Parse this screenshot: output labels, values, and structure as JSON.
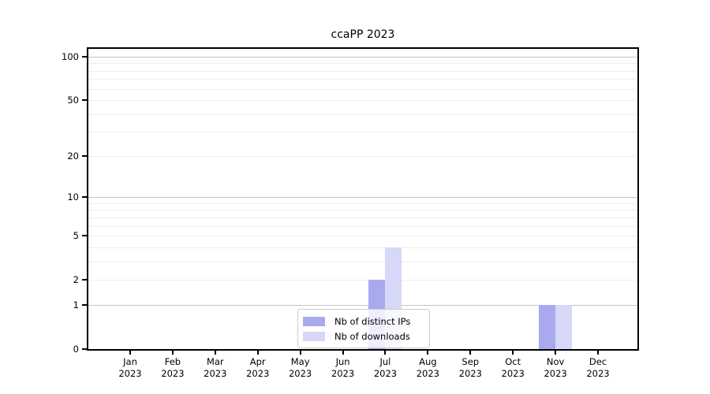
{
  "chart_data": {
    "type": "bar",
    "title": "ccaPP 2023",
    "categories": [
      "Jan",
      "Feb",
      "Mar",
      "Apr",
      "May",
      "Jun",
      "Jul",
      "Aug",
      "Sep",
      "Oct",
      "Nov",
      "Dec"
    ],
    "year": "2023",
    "series": [
      {
        "name": "Nb of distinct IPs",
        "color": "#a9a9f0",
        "values": [
          0,
          0,
          0,
          0,
          0,
          0,
          2,
          0,
          0,
          0,
          1,
          0
        ]
      },
      {
        "name": "Nb of downloads",
        "color": "#d7d7f7",
        "values": [
          0,
          0,
          0,
          0,
          0,
          0,
          4,
          0,
          0,
          0,
          1,
          0
        ]
      }
    ],
    "y_axis": {
      "ticks": [
        0,
        1,
        2,
        5,
        10,
        20,
        50,
        100
      ],
      "scale": "log1p",
      "max": 113.5,
      "major_gridlines": [
        1,
        10,
        100
      ],
      "minor_gridlines": [
        2,
        3,
        4,
        5,
        6,
        7,
        8,
        9,
        20,
        30,
        40,
        50,
        60,
        70,
        80,
        90
      ]
    },
    "xlabel": "",
    "ylabel": "",
    "grid": true,
    "legend_position": "inside-bottom-center"
  },
  "colors": {
    "major_grid": "#c4c4c4",
    "minor_grid": "#ededed",
    "spine": "#000000",
    "legend_border": "#cccccc",
    "background": "#ffffff"
  }
}
